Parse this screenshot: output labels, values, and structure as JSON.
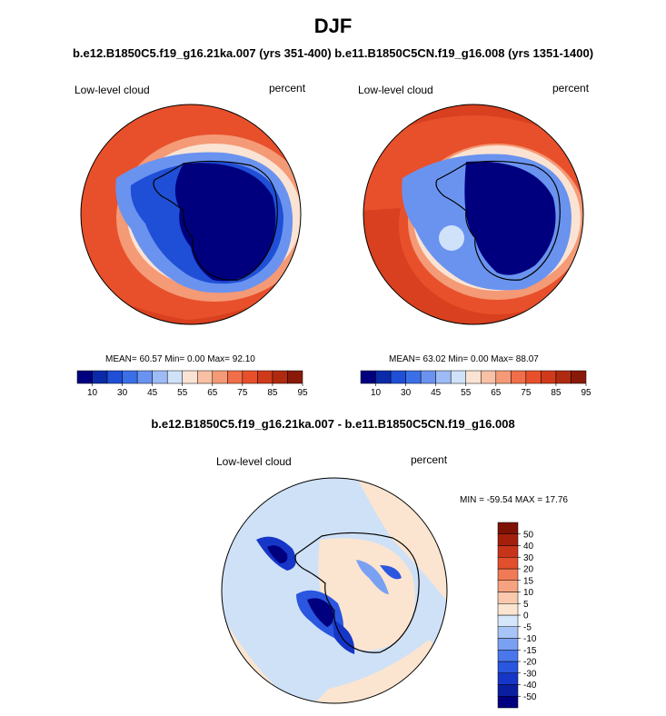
{
  "title": "DJF",
  "subtitle": "b.e12.B1850C5.f19_g16.21ka.007 (yrs 351-400) b.e11.B1850C5CN.f19_g16.008 (yrs 1351-1400)",
  "colors": {
    "ocean_high": "#e8502b",
    "ocean_dark": "#d8401f",
    "land_low": "#00007f",
    "ice_edge": "#2a56e0",
    "diff_background": "#cfe1f7",
    "diff_positive": "#fbe3cf"
  },
  "panels": [
    {
      "variable": "Low-level cloud",
      "units": "percent",
      "stats": "MEAN=  60.57  Min=    0.00  Max=  92.10",
      "colorbar": {
        "colors": [
          "#00007f",
          "#0a2aa8",
          "#1f4fd6",
          "#3b6fe8",
          "#6a93f0",
          "#9dbcf6",
          "#d0e2fa",
          "#fbe3d3",
          "#f8c0a5",
          "#f49a76",
          "#f06e4a",
          "#e8502b",
          "#cf3b1a",
          "#b02a10",
          "#8a1a08"
        ],
        "tick_labels": [
          "10",
          "30",
          "45",
          "55",
          "65",
          "75",
          "85",
          "95"
        ]
      }
    },
    {
      "variable": "Low-level cloud",
      "units": "percent",
      "stats": "MEAN=  63.02  Min=    0.00  Max=  88.07",
      "colorbar": {
        "colors": [
          "#00007f",
          "#0a2aa8",
          "#1f4fd6",
          "#3b6fe8",
          "#6a93f0",
          "#9dbcf6",
          "#d0e2fa",
          "#fbe3d3",
          "#f8c0a5",
          "#f49a76",
          "#f06e4a",
          "#e8502b",
          "#cf3b1a",
          "#b02a10",
          "#8a1a08"
        ],
        "tick_labels": [
          "10",
          "30",
          "45",
          "55",
          "65",
          "75",
          "85",
          "95"
        ]
      }
    }
  ],
  "difference": {
    "title": "b.e12.B1850C5.f19_g16.21ka.007 - b.e11.B1850C5CN.f19_g16.008",
    "variable": "Low-level cloud",
    "units": "percent",
    "stats": "MIN = -59.54 MAX = 17.76",
    "colorbar": {
      "colors": [
        "#00007f",
        "#0a1fa0",
        "#1636c8",
        "#2a56e0",
        "#4a78ec",
        "#7aa0f2",
        "#a8c4f6",
        "#d6e6fa",
        "#fbe5d0",
        "#fac9ad",
        "#f6a280",
        "#f07a55",
        "#e24f2c",
        "#c8341a",
        "#a4200c",
        "#7e1204"
      ],
      "tick_labels": [
        "50",
        "40",
        "30",
        "20",
        "15",
        "10",
        "5",
        "0",
        "-5",
        "-10",
        "-15",
        "-20",
        "-30",
        "-40",
        "-50"
      ]
    }
  }
}
